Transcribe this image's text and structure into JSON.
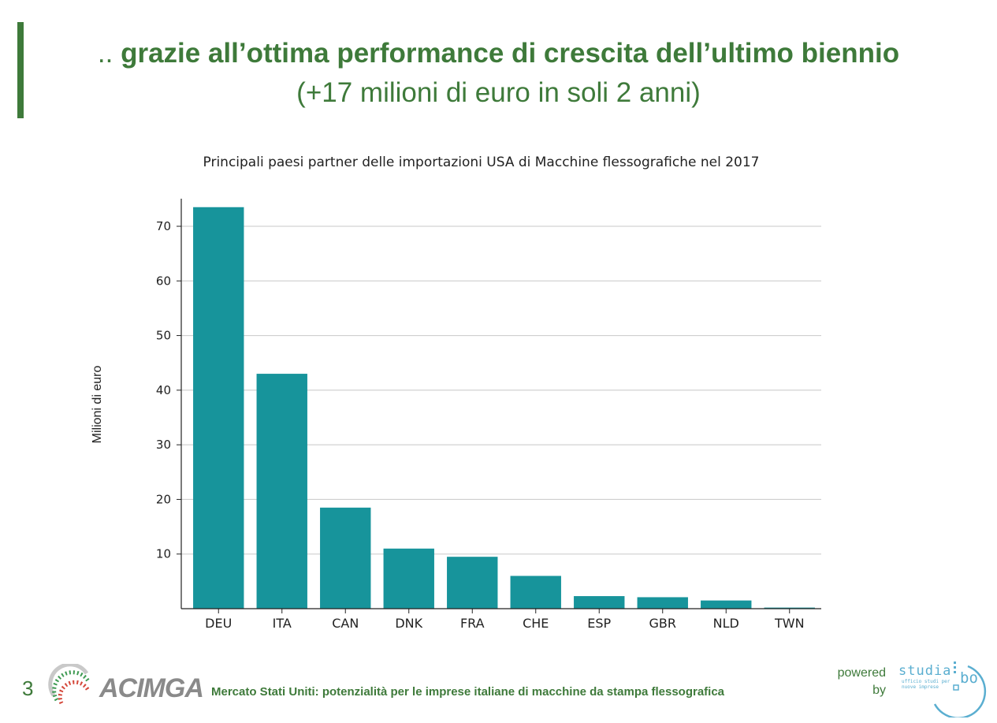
{
  "header": {
    "title_prefix": "..",
    "title_main": "grazie all’ottima performance di crescita dell’ultimo biennio",
    "subtitle": "(+17 milioni di euro in soli 2 anni)"
  },
  "chart_data": {
    "type": "bar",
    "title": "Principali paesi partner delle importazioni USA di Macchine flessografiche nel 2017",
    "xlabel": "",
    "ylabel": "Milioni di euro",
    "categories": [
      "DEU",
      "ITA",
      "CAN",
      "DNK",
      "FRA",
      "CHE",
      "ESP",
      "GBR",
      "NLD",
      "TWN"
    ],
    "values": [
      73.5,
      43,
      18.5,
      11,
      9.5,
      6,
      2.3,
      2.1,
      1.5,
      0.2
    ],
    "ylim": [
      0,
      74
    ],
    "yticks": [
      10,
      20,
      30,
      40,
      50,
      60,
      70
    ],
    "grid": "horizontal",
    "bar_color": "#17949b"
  },
  "footer": {
    "page_number": "3",
    "logo_text": "ACIMGA",
    "caption": "Mercato Stati Uniti: potenzialità per le imprese italiane di macchine da stampa flessografica",
    "powered_line1": "powered",
    "powered_line2": "by",
    "studia_text": "studia",
    "bo_text": "bo",
    "studia_sub": "ufficio studi per\nnuove imprese"
  },
  "colors": {
    "brand_green": "#3e7a3a",
    "bar": "#17949b",
    "studia_blue": "#5aaed0"
  }
}
